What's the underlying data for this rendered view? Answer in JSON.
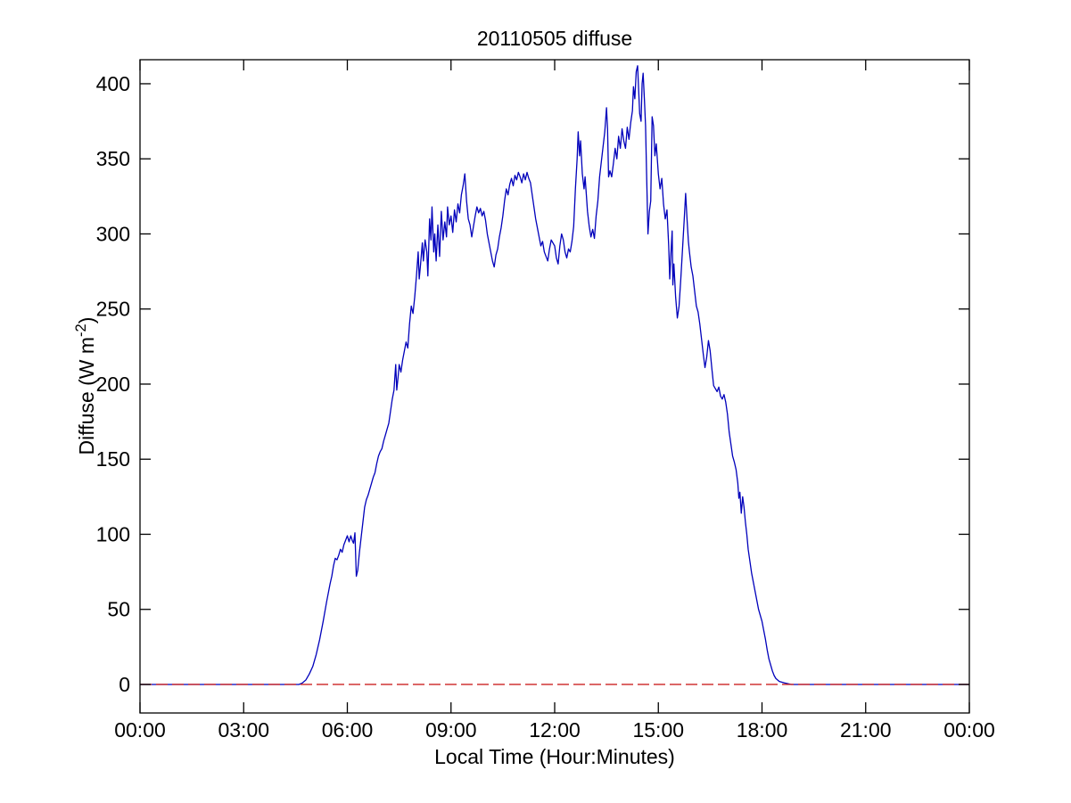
{
  "figure": {
    "background": "#ffffff"
  },
  "chart_data": {
    "type": "line",
    "title": "20110505 diffuse",
    "xlabel": "Local Time (Hour:Minutes)",
    "ylabel": "Diffuse (W m-2)",
    "ylabel_parts": {
      "pre": "Diffuse (W m",
      "sup": "-2",
      "post": ")"
    },
    "xlim": [
      0,
      24
    ],
    "ylim": [
      -19,
      416
    ],
    "grid": false,
    "legend_position": "none",
    "box": true,
    "tick_direction": "in",
    "axis_color": "#000000",
    "x_ticks": {
      "values": [
        0,
        3,
        6,
        9,
        12,
        15,
        18,
        21,
        24
      ],
      "labels": [
        "00:00",
        "03:00",
        "06:00",
        "09:00",
        "12:00",
        "15:00",
        "18:00",
        "21:00",
        "00:00"
      ]
    },
    "y_ticks": {
      "values": [
        0,
        50,
        100,
        150,
        200,
        250,
        300,
        350,
        400
      ],
      "labels": [
        "0",
        "50",
        "100",
        "150",
        "200",
        "250",
        "300",
        "350",
        "400"
      ]
    },
    "series": [
      {
        "name": "diffuse-irradiance",
        "color": "#0000bb",
        "line_style": "solid",
        "line_width": 1.3,
        "x_unit": "hours (local time)",
        "y_unit": "W m-2",
        "points": [
          [
            0.0,
            0
          ],
          [
            4.6,
            0
          ],
          [
            4.7,
            1
          ],
          [
            4.8,
            3
          ],
          [
            4.9,
            7
          ],
          [
            5.0,
            12
          ],
          [
            5.1,
            20
          ],
          [
            5.2,
            30
          ],
          [
            5.3,
            42
          ],
          [
            5.4,
            55
          ],
          [
            5.5,
            67
          ],
          [
            5.55,
            72
          ],
          [
            5.6,
            79
          ],
          [
            5.65,
            84
          ],
          [
            5.7,
            83
          ],
          [
            5.75,
            86
          ],
          [
            5.8,
            90
          ],
          [
            5.85,
            88
          ],
          [
            5.9,
            93
          ],
          [
            5.95,
            96
          ],
          [
            6.0,
            99
          ],
          [
            6.05,
            95
          ],
          [
            6.1,
            99
          ],
          [
            6.14,
            96
          ],
          [
            6.18,
            94
          ],
          [
            6.22,
            101
          ],
          [
            6.26,
            72
          ],
          [
            6.3,
            76
          ],
          [
            6.35,
            88
          ],
          [
            6.4,
            98
          ],
          [
            6.45,
            108
          ],
          [
            6.5,
            118
          ],
          [
            6.55,
            123
          ],
          [
            6.6,
            126
          ],
          [
            6.65,
            130
          ],
          [
            6.7,
            134
          ],
          [
            6.75,
            138
          ],
          [
            6.8,
            141
          ],
          [
            6.85,
            147
          ],
          [
            6.9,
            152
          ],
          [
            6.95,
            155
          ],
          [
            7.0,
            157
          ],
          [
            7.05,
            162
          ],
          [
            7.1,
            166
          ],
          [
            7.15,
            170
          ],
          [
            7.2,
            174
          ],
          [
            7.25,
            182
          ],
          [
            7.3,
            190
          ],
          [
            7.35,
            196
          ],
          [
            7.4,
            213
          ],
          [
            7.43,
            196
          ],
          [
            7.47,
            205
          ],
          [
            7.5,
            213
          ],
          [
            7.55,
            208
          ],
          [
            7.6,
            216
          ],
          [
            7.65,
            222
          ],
          [
            7.7,
            228
          ],
          [
            7.75,
            224
          ],
          [
            7.8,
            240
          ],
          [
            7.85,
            252
          ],
          [
            7.9,
            247
          ],
          [
            7.95,
            258
          ],
          [
            8.0,
            272
          ],
          [
            8.05,
            288
          ],
          [
            8.08,
            270
          ],
          [
            8.12,
            280
          ],
          [
            8.17,
            294
          ],
          [
            8.2,
            282
          ],
          [
            8.25,
            296
          ],
          [
            8.3,
            288
          ],
          [
            8.33,
            272
          ],
          [
            8.38,
            310
          ],
          [
            8.42,
            296
          ],
          [
            8.45,
            318
          ],
          [
            8.5,
            288
          ],
          [
            8.53,
            300
          ],
          [
            8.57,
            282
          ],
          [
            8.62,
            306
          ],
          [
            8.67,
            285
          ],
          [
            8.72,
            315
          ],
          [
            8.77,
            296
          ],
          [
            8.82,
            308
          ],
          [
            8.87,
            298
          ],
          [
            8.9,
            318
          ],
          [
            8.95,
            306
          ],
          [
            9.0,
            312
          ],
          [
            9.05,
            301
          ],
          [
            9.1,
            316
          ],
          [
            9.15,
            308
          ],
          [
            9.2,
            320
          ],
          [
            9.25,
            314
          ],
          [
            9.3,
            326
          ],
          [
            9.35,
            332
          ],
          [
            9.4,
            340
          ],
          [
            9.45,
            322
          ],
          [
            9.5,
            310
          ],
          [
            9.55,
            306
          ],
          [
            9.6,
            298
          ],
          [
            9.65,
            305
          ],
          [
            9.7,
            312
          ],
          [
            9.75,
            318
          ],
          [
            9.8,
            314
          ],
          [
            9.85,
            317
          ],
          [
            9.9,
            312
          ],
          [
            9.95,
            315
          ],
          [
            10.0,
            309
          ],
          [
            10.05,
            300
          ],
          [
            10.1,
            294
          ],
          [
            10.15,
            288
          ],
          [
            10.2,
            282
          ],
          [
            10.25,
            278
          ],
          [
            10.3,
            286
          ],
          [
            10.35,
            290
          ],
          [
            10.4,
            298
          ],
          [
            10.45,
            304
          ],
          [
            10.5,
            312
          ],
          [
            10.55,
            322
          ],
          [
            10.6,
            330
          ],
          [
            10.65,
            326
          ],
          [
            10.7,
            333
          ],
          [
            10.75,
            337
          ],
          [
            10.8,
            332
          ],
          [
            10.85,
            339
          ],
          [
            10.9,
            336
          ],
          [
            10.95,
            341
          ],
          [
            11.0,
            338
          ],
          [
            11.05,
            334
          ],
          [
            11.1,
            340
          ],
          [
            11.15,
            336
          ],
          [
            11.2,
            341
          ],
          [
            11.25,
            337
          ],
          [
            11.3,
            334
          ],
          [
            11.35,
            326
          ],
          [
            11.4,
            318
          ],
          [
            11.45,
            310
          ],
          [
            11.5,
            304
          ],
          [
            11.55,
            298
          ],
          [
            11.6,
            292
          ],
          [
            11.65,
            295
          ],
          [
            11.7,
            288
          ],
          [
            11.8,
            282
          ],
          [
            11.85,
            290
          ],
          [
            11.9,
            296
          ],
          [
            12.0,
            292
          ],
          [
            12.05,
            284
          ],
          [
            12.1,
            280
          ],
          [
            12.15,
            292
          ],
          [
            12.2,
            300
          ],
          [
            12.25,
            296
          ],
          [
            12.3,
            288
          ],
          [
            12.35,
            284
          ],
          [
            12.4,
            290
          ],
          [
            12.45,
            288
          ],
          [
            12.5,
            295
          ],
          [
            12.55,
            305
          ],
          [
            12.6,
            330
          ],
          [
            12.65,
            350
          ],
          [
            12.68,
            368
          ],
          [
            12.72,
            352
          ],
          [
            12.75,
            362
          ],
          [
            12.8,
            340
          ],
          [
            12.85,
            330
          ],
          [
            12.88,
            338
          ],
          [
            12.92,
            325
          ],
          [
            12.95,
            315
          ],
          [
            13.0,
            305
          ],
          [
            13.05,
            298
          ],
          [
            13.1,
            303
          ],
          [
            13.15,
            297
          ],
          [
            13.2,
            312
          ],
          [
            13.25,
            322
          ],
          [
            13.3,
            338
          ],
          [
            13.35,
            348
          ],
          [
            13.4,
            358
          ],
          [
            13.45,
            368
          ],
          [
            13.5,
            384
          ],
          [
            13.53,
            370
          ],
          [
            13.56,
            338
          ],
          [
            13.6,
            342
          ],
          [
            13.65,
            338
          ],
          [
            13.7,
            347
          ],
          [
            13.75,
            357
          ],
          [
            13.8,
            350
          ],
          [
            13.85,
            365
          ],
          [
            13.9,
            357
          ],
          [
            13.95,
            370
          ],
          [
            14.0,
            362
          ],
          [
            14.05,
            357
          ],
          [
            14.1,
            371
          ],
          [
            14.15,
            363
          ],
          [
            14.2,
            374
          ],
          [
            14.25,
            382
          ],
          [
            14.28,
            398
          ],
          [
            14.32,
            390
          ],
          [
            14.36,
            408
          ],
          [
            14.4,
            412
          ],
          [
            14.43,
            396
          ],
          [
            14.46,
            380
          ],
          [
            14.5,
            375
          ],
          [
            14.53,
            400
          ],
          [
            14.56,
            407
          ],
          [
            14.6,
            388
          ],
          [
            14.63,
            372
          ],
          [
            14.66,
            340
          ],
          [
            14.7,
            300
          ],
          [
            14.74,
            315
          ],
          [
            14.78,
            322
          ],
          [
            14.82,
            378
          ],
          [
            14.86,
            372
          ],
          [
            14.9,
            352
          ],
          [
            14.94,
            360
          ],
          [
            15.0,
            340
          ],
          [
            15.05,
            330
          ],
          [
            15.1,
            337
          ],
          [
            15.15,
            320
          ],
          [
            15.2,
            310
          ],
          [
            15.25,
            316
          ],
          [
            15.3,
            292
          ],
          [
            15.33,
            270
          ],
          [
            15.36,
            285
          ],
          [
            15.4,
            302
          ],
          [
            15.42,
            266
          ],
          [
            15.45,
            280
          ],
          [
            15.5,
            258
          ],
          [
            15.55,
            244
          ],
          [
            15.6,
            252
          ],
          [
            15.65,
            270
          ],
          [
            15.7,
            290
          ],
          [
            15.75,
            310
          ],
          [
            15.79,
            327
          ],
          [
            15.83,
            310
          ],
          [
            15.87,
            295
          ],
          [
            15.9,
            288
          ],
          [
            15.95,
            278
          ],
          [
            16.0,
            272
          ],
          [
            16.05,
            262
          ],
          [
            16.1,
            252
          ],
          [
            16.15,
            248
          ],
          [
            16.2,
            240
          ],
          [
            16.25,
            230
          ],
          [
            16.3,
            220
          ],
          [
            16.35,
            211
          ],
          [
            16.4,
            218
          ],
          [
            16.45,
            229
          ],
          [
            16.5,
            222
          ],
          [
            16.55,
            210
          ],
          [
            16.6,
            199
          ],
          [
            16.65,
            197
          ],
          [
            16.7,
            195
          ],
          [
            16.75,
            198
          ],
          [
            16.8,
            192
          ],
          [
            16.85,
            190
          ],
          [
            16.9,
            193
          ],
          [
            16.95,
            188
          ],
          [
            17.0,
            180
          ],
          [
            17.05,
            168
          ],
          [
            17.1,
            160
          ],
          [
            17.15,
            152
          ],
          [
            17.2,
            148
          ],
          [
            17.25,
            143
          ],
          [
            17.3,
            134
          ],
          [
            17.33,
            124
          ],
          [
            17.36,
            128
          ],
          [
            17.4,
            114
          ],
          [
            17.44,
            125
          ],
          [
            17.48,
            118
          ],
          [
            17.52,
            108
          ],
          [
            17.56,
            100
          ],
          [
            17.6,
            90
          ],
          [
            17.65,
            82
          ],
          [
            17.7,
            74
          ],
          [
            17.75,
            68
          ],
          [
            17.8,
            62
          ],
          [
            17.85,
            56
          ],
          [
            17.9,
            50
          ],
          [
            17.95,
            46
          ],
          [
            18.0,
            42
          ],
          [
            18.05,
            36
          ],
          [
            18.1,
            30
          ],
          [
            18.15,
            23
          ],
          [
            18.2,
            17
          ],
          [
            18.25,
            13
          ],
          [
            18.3,
            9
          ],
          [
            18.35,
            6
          ],
          [
            18.4,
            4
          ],
          [
            18.5,
            2
          ],
          [
            18.65,
            1
          ],
          [
            18.85,
            0
          ],
          [
            24.0,
            0
          ]
        ]
      },
      {
        "name": "zero-reference",
        "color": "#cc2222",
        "line_style": "dashed",
        "line_width": 1.4,
        "points": [
          [
            0,
            0
          ],
          [
            24,
            0
          ]
        ]
      }
    ]
  }
}
